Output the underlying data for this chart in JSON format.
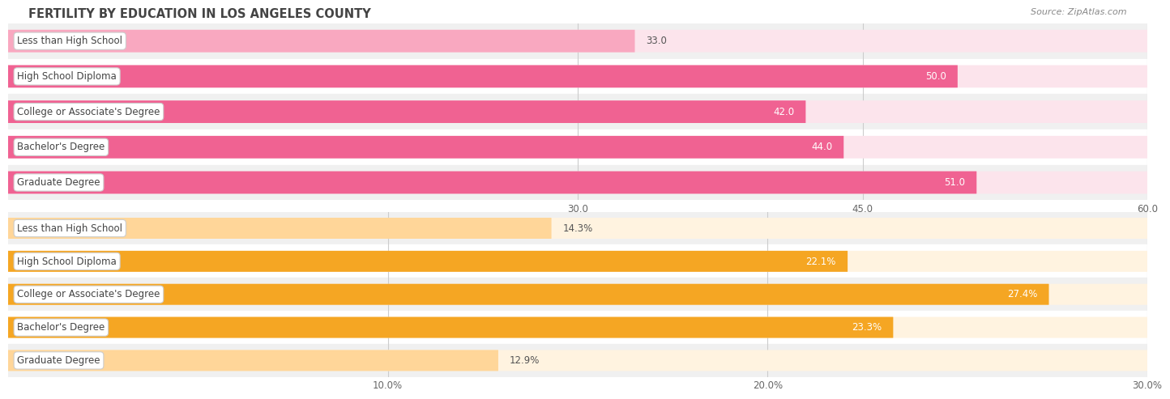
{
  "title": "FERTILITY BY EDUCATION IN LOS ANGELES COUNTY",
  "source": "Source: ZipAtlas.com",
  "top_chart": {
    "categories": [
      "Less than High School",
      "High School Diploma",
      "College or Associate's Degree",
      "Bachelor's Degree",
      "Graduate Degree"
    ],
    "values": [
      33.0,
      50.0,
      42.0,
      44.0,
      51.0
    ],
    "xmin": 0,
    "xmax": 60.0,
    "xticks": [
      30.0,
      45.0,
      60.0
    ],
    "bar_color_light": "#f9a8c0",
    "bar_color_dark": "#f06292",
    "bar_bg_color": "#fce4ec",
    "label_inside_threshold": 40.0,
    "is_percent": false
  },
  "bottom_chart": {
    "categories": [
      "Less than High School",
      "High School Diploma",
      "College or Associate's Degree",
      "Bachelor's Degree",
      "Graduate Degree"
    ],
    "values": [
      14.3,
      22.1,
      27.4,
      23.3,
      12.9
    ],
    "xmin": 0,
    "xmax": 30.0,
    "xticks": [
      10.0,
      20.0,
      30.0
    ],
    "bar_color_light": "#ffd699",
    "bar_color_dark": "#f5a623",
    "bar_bg_color": "#fff3e0",
    "label_inside_threshold": 20.0,
    "is_percent": true
  },
  "label_fontsize": 8.5,
  "title_fontsize": 10.5,
  "source_fontsize": 8,
  "tick_fontsize": 8.5,
  "bar_height": 0.62,
  "row_bg_colors": [
    "#f0f0f0",
    "#ffffff"
  ]
}
